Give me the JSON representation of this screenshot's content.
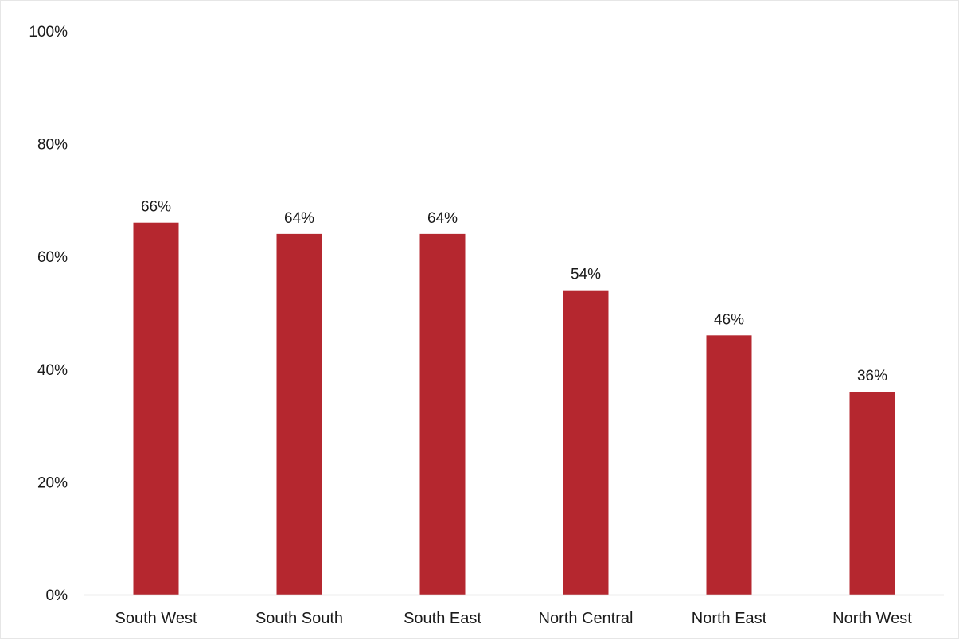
{
  "chart_data": {
    "type": "bar",
    "categories": [
      "South West",
      "South South",
      "South East",
      "North Central",
      "North East",
      "North West"
    ],
    "values": [
      66,
      64,
      64,
      54,
      46,
      36
    ],
    "data_labels": [
      "66%",
      "64%",
      "64%",
      "54%",
      "46%",
      "36%"
    ],
    "title": "",
    "xlabel": "",
    "ylabel": "",
    "ylim": [
      0,
      100
    ],
    "yticks": [
      0,
      20,
      40,
      60,
      80,
      100
    ],
    "ytick_labels": [
      "0%",
      "20%",
      "40%",
      "60%",
      "80%",
      "100%"
    ],
    "grid": false,
    "legend": "none",
    "bar_color": "#b5272f",
    "axis_color": "#d9d9d9"
  }
}
